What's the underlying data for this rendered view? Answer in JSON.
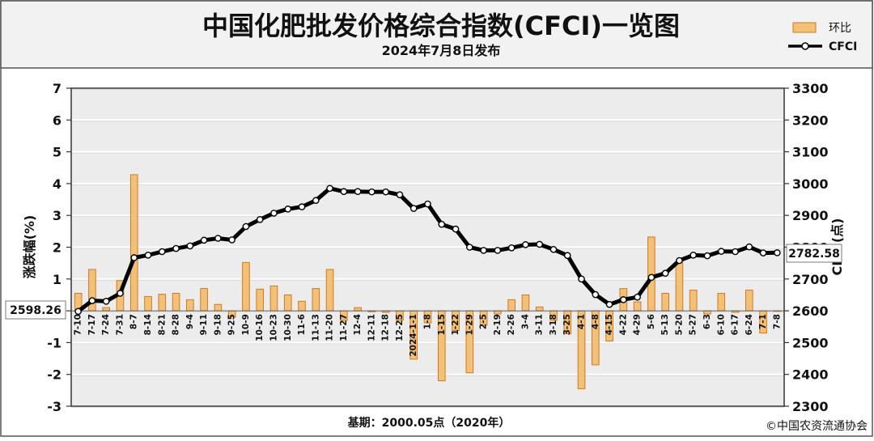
{
  "header": {
    "title": "中国化肥批发价格综合指数(CFCI)一览图",
    "subtitle": "2024年7月8日发布"
  },
  "legend": {
    "bar_label": "环比",
    "line_label": "CFCI"
  },
  "footer": {
    "base_note": "基期：2000.05点（2020年）",
    "copyright": "©中国农资流通协会"
  },
  "colors": {
    "bar_fill": "#f3c078",
    "bar_stroke": "#d07a1f",
    "line": "#000000",
    "plot_bg": "#ececec",
    "grid": "#ffffff"
  },
  "chart_data": {
    "type": "bar+line",
    "x": [
      "7-10",
      "7-17",
      "7-24",
      "7-31",
      "8-7",
      "8-14",
      "8-21",
      "8-28",
      "9-4",
      "9-11",
      "9-18",
      "9-25",
      "10-9",
      "10-16",
      "10-23",
      "10-30",
      "11-6",
      "11-13",
      "11-20",
      "11-27",
      "12-4",
      "12-11",
      "12-18",
      "12-25",
      "2024-1-1",
      "1-8",
      "1-15",
      "1-22",
      "1-29",
      "2-5",
      "2-19",
      "2-26",
      "3-4",
      "3-11",
      "3-18",
      "3-25",
      "4-1",
      "4-8",
      "4-15",
      "4-22",
      "4-29",
      "5-6",
      "5-13",
      "5-20",
      "5-27",
      "6-3",
      "6-10",
      "6-17",
      "6-24",
      "7-1",
      "7-8"
    ],
    "series": [
      {
        "name": "环比",
        "type": "bar",
        "axis": "left",
        "values": [
          0.55,
          1.3,
          0.1,
          0.95,
          4.28,
          0.45,
          0.52,
          0.55,
          0.35,
          0.7,
          0.2,
          -0.2,
          1.52,
          0.68,
          0.78,
          0.5,
          0.3,
          0.7,
          1.3,
          -0.3,
          0.1,
          -0.03,
          -0.05,
          -0.3,
          -1.52,
          -0.38,
          -2.2,
          -0.62,
          -1.95,
          -0.45,
          -0.1,
          0.35,
          0.5,
          0.12,
          -0.3,
          -0.72,
          -2.45,
          -1.7,
          -0.95,
          0.7,
          0.28,
          2.32,
          0.55,
          1.52,
          0.65,
          -0.1,
          0.55,
          -0.05,
          0.65,
          -0.7,
          0.0
        ]
      },
      {
        "name": "CFCI",
        "type": "line",
        "axis": "right",
        "values": [
          2598.26,
          2632,
          2630,
          2655,
          2767,
          2775,
          2786,
          2796,
          2804,
          2822,
          2828,
          2823,
          2865,
          2887,
          2907,
          2920,
          2927,
          2947,
          2985,
          2975,
          2975,
          2974,
          2974,
          2965,
          2922,
          2936,
          2872,
          2857,
          2800,
          2790,
          2790,
          2798,
          2808,
          2809,
          2793,
          2774,
          2700,
          2651,
          2620,
          2635,
          2643,
          2705,
          2718,
          2758,
          2775,
          2773,
          2787,
          2786,
          2801,
          2782,
          2782.58
        ]
      }
    ],
    "left_axis": {
      "label": "涨跌幅(%)",
      "min": -3,
      "max": 7,
      "ticks": [
        "-3",
        "-2",
        "-1",
        "0",
        "1",
        "2",
        "3",
        "4",
        "5",
        "6",
        "7"
      ]
    },
    "right_axis": {
      "label": "CFCI(点)",
      "min": 2300,
      "max": 3300,
      "ticks": [
        "2300",
        "2400",
        "2500",
        "2600",
        "2700",
        "2800",
        "2900",
        "3000",
        "3100",
        "3200",
        "3300"
      ]
    },
    "start_callout": "2598.26",
    "end_callout": "2782.58",
    "grid": true,
    "legend_position": "top-right"
  }
}
